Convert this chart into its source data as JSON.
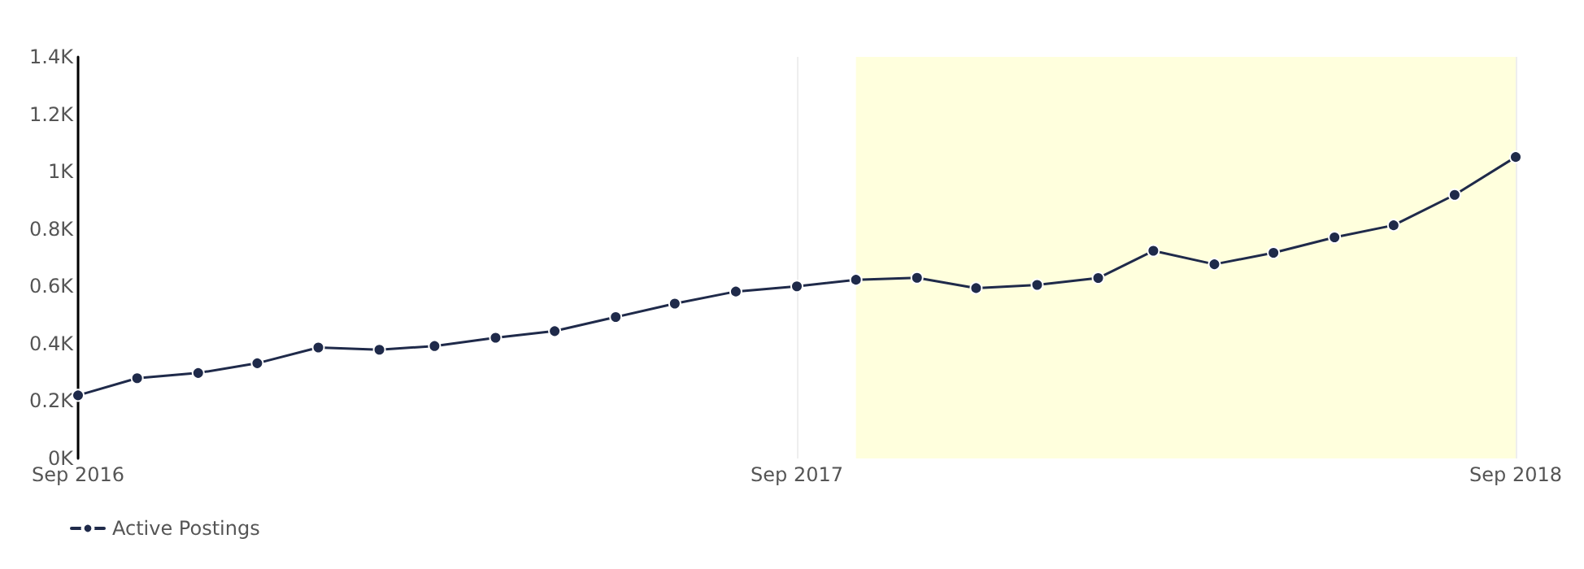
{
  "chart_data": {
    "type": "line",
    "x": [
      "2016-09",
      "2016-10",
      "2016-11",
      "2016-12",
      "2017-01",
      "2017-02",
      "2017-03",
      "2017-04",
      "2017-05",
      "2017-06",
      "2017-07",
      "2017-08",
      "2017-09",
      "2017-10",
      "2017-11",
      "2017-12",
      "2018-01",
      "2018-02",
      "2018-03",
      "2018-04",
      "2018-05",
      "2018-06",
      "2018-07",
      "2018-08",
      "2018-09"
    ],
    "series": [
      {
        "name": "Active Postings",
        "color": "#1f2a4a",
        "values": [
          220,
          280,
          298,
          332,
          387,
          379,
          392,
          421,
          444,
          493,
          540,
          582,
          600,
          623,
          630,
          594,
          605,
          629,
          724,
          677,
          717,
          771,
          813,
          919,
          1051
        ]
      }
    ],
    "xlim": [
      "2016-09",
      "2018-09"
    ],
    "xticks": [
      {
        "value": "2016-09",
        "label": "Sep 2016"
      },
      {
        "value": "2017-09",
        "label": "Sep 2017"
      },
      {
        "value": "2018-09",
        "label": "Sep 2018"
      }
    ],
    "ylim": [
      0,
      1400
    ],
    "yticks": [
      {
        "value": 0,
        "label": "0K"
      },
      {
        "value": 200,
        "label": "0.2K"
      },
      {
        "value": 400,
        "label": "0.4K"
      },
      {
        "value": 600,
        "label": "0.6K"
      },
      {
        "value": 800,
        "label": "0.8K"
      },
      {
        "value": 1000,
        "label": "1K"
      },
      {
        "value": 1200,
        "label": "1.2K"
      },
      {
        "value": 1400,
        "label": "1.4K"
      }
    ],
    "bands": [
      {
        "axis": "x",
        "from": "2017-10",
        "to": "2018-09",
        "color": "#ffffdd"
      }
    ],
    "grid": "x",
    "legend": "bottom left",
    "marker": "circle",
    "line_style": "solid"
  }
}
